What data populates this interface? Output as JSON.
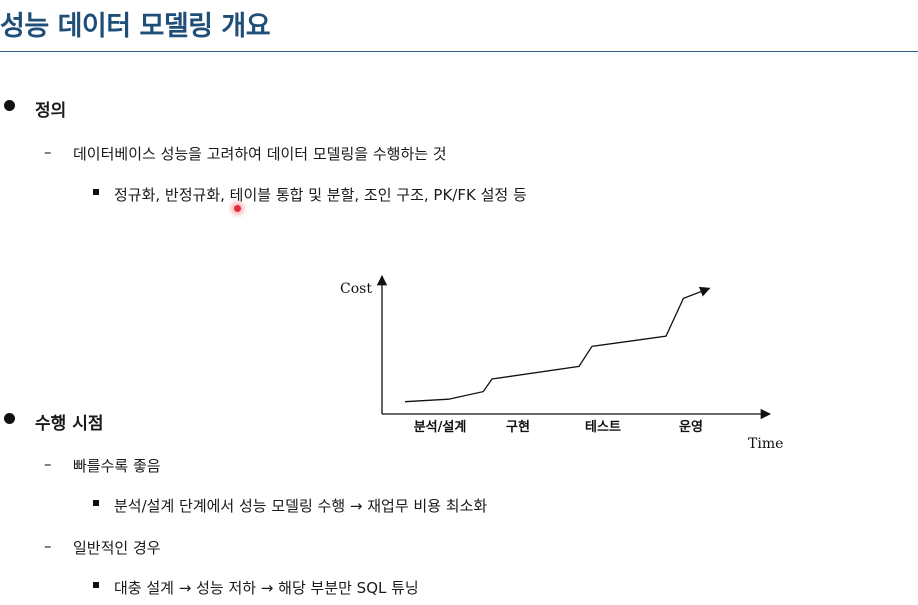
{
  "slide": {
    "title": "성능 데이터 모델링 개요"
  },
  "sections": [
    {
      "heading": "정의",
      "items": [
        {
          "text": "데이터베이스 성능을 고려하여 데이터 모델링을 수행하는 것",
          "sub": [
            "정규화, 반정규화, 테이블 통합 및 분할, 조인 구조, PK/FK 설정 등"
          ]
        }
      ]
    },
    {
      "heading": "수행 시점",
      "items": [
        {
          "text": "빠를수록 좋음",
          "sub": [
            "분석/설계 단계에서 성능 모델링 수행 → 재업무 비용 최소화"
          ]
        },
        {
          "text": "일반적인 경우",
          "sub": [
            "대충 설계 → 성능 저하 → 해당 부분만 SQL 튜닝"
          ]
        }
      ]
    }
  ],
  "chart_data": {
    "type": "line",
    "ylabel": "Cost",
    "xlabel": "Time",
    "categories": [
      "분석/설계",
      "구현",
      "테스트",
      "운영"
    ],
    "ylim": [
      0,
      100
    ],
    "series": [
      {
        "x": [
          0,
          0.5,
          0.9,
          1.0,
          2.0,
          2.15,
          3.0,
          3.2,
          3.5
        ],
        "values": [
          5,
          7,
          13,
          23,
          33,
          49,
          57,
          87,
          95
        ]
      }
    ],
    "grid": false,
    "legend": "none",
    "line_color": "#111111"
  }
}
